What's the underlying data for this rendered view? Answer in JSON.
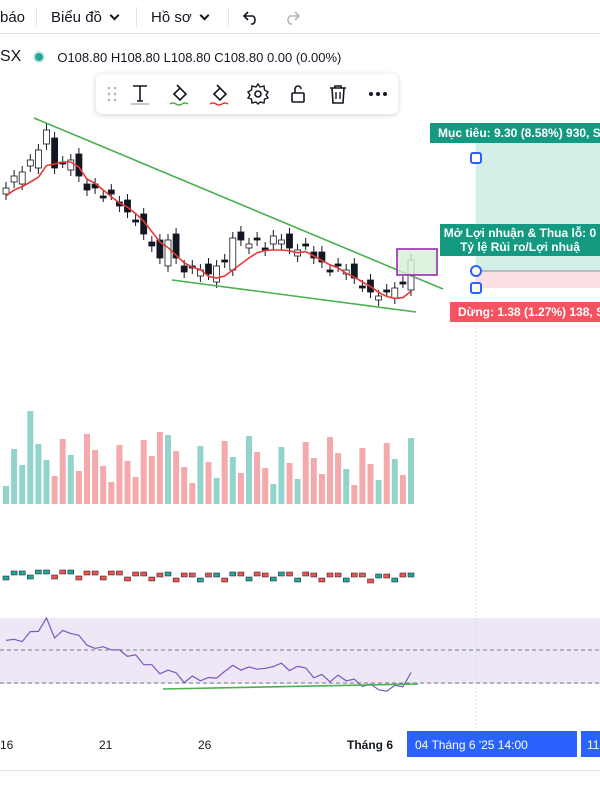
{
  "toolbar": {
    "items": [
      {
        "label": "báo"
      },
      {
        "label": "Biểu đồ"
      },
      {
        "label": "Hồ sơ"
      }
    ],
    "undo_icon": "undo-icon",
    "redo_icon": "redo-icon"
  },
  "legend": {
    "symbol": "SX",
    "ohlc": "O108.80  H108.80  L108.80  C108.80  0.00 (0.00%)",
    "status_color": "#26a69a"
  },
  "drawing_toolbar": {
    "icons": [
      "drag-handle-icon",
      "text-icon",
      "fill-color-icon",
      "line-color-icon",
      "settings-icon",
      "lock-icon",
      "delete-icon",
      "more-icon"
    ]
  },
  "position": {
    "target_label": "Mục tiêu: 9.30 (8.58%) 930, S",
    "mid_label_line1": "Mở Lợi nhuận & Thua lỗ: 0",
    "mid_label_line2": "Tỷ lệ Rủi ro/Lợi nhuậ",
    "stop_label": "Dừng: 1.38 (1.27%) 138, S",
    "target_color": "#139a80",
    "stop_color": "#f7525f"
  },
  "time_axis": {
    "ticks": [
      {
        "label": "16",
        "bold": false
      },
      {
        "label": "21",
        "bold": false
      },
      {
        "label": "26",
        "bold": false
      },
      {
        "label": "Tháng 6",
        "bold": true
      }
    ],
    "cursor_label": "04 Tháng 6 '25   14:00",
    "cursor_label2": "11"
  },
  "colors": {
    "up": "#26a69a",
    "down": "#ef5350",
    "ma": "#e53935",
    "trendline": "#4caf50",
    "rsi_line": "#7e57c2",
    "rsi_band": "#ede7f6"
  }
}
